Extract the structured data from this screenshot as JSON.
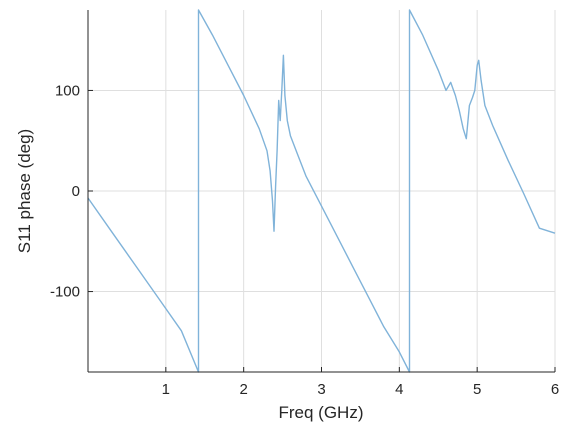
{
  "chart_data": {
    "type": "line",
    "title": "",
    "xlabel": "Freq (GHz)",
    "ylabel": "S11 phase (deg)",
    "xlim": [
      0,
      6
    ],
    "ylim": [
      -180,
      180
    ],
    "xticks": [
      1,
      2,
      3,
      4,
      5,
      6
    ],
    "yticks": [
      -100,
      0,
      100
    ],
    "grid": true,
    "legend": "none",
    "line_color": "#80b3d9",
    "series": [
      {
        "x": [
          0.0,
          0.3,
          0.6,
          0.9,
          1.2,
          1.42,
          1.42,
          1.6,
          1.8,
          2.0,
          2.2,
          2.3,
          2.34,
          2.37,
          2.39,
          2.41,
          2.43,
          2.45,
          2.47,
          2.49,
          2.51,
          2.53,
          2.56,
          2.6,
          2.7,
          2.8,
          3.0,
          3.2,
          3.4,
          3.6,
          3.8,
          4.0,
          4.13,
          4.13,
          4.3,
          4.5,
          4.6,
          4.66,
          4.72,
          4.77,
          4.82,
          4.86,
          4.9,
          4.94,
          4.97,
          5.0,
          5.02,
          5.05,
          5.1,
          5.2,
          5.4,
          5.6,
          5.8,
          6.0
        ],
        "y": [
          -7,
          -40,
          -73,
          -106,
          -139,
          -180,
          180,
          155,
          125,
          95,
          62,
          40,
          20,
          -10,
          -40,
          5,
          40,
          90,
          70,
          100,
          135,
          95,
          70,
          55,
          35,
          15,
          -15,
          -45,
          -75,
          -105,
          -135,
          -160,
          -180,
          180,
          155,
          120,
          100,
          108,
          95,
          80,
          62,
          52,
          85,
          93,
          100,
          125,
          130,
          110,
          85,
          65,
          30,
          -3,
          -37,
          -42
        ]
      }
    ]
  }
}
